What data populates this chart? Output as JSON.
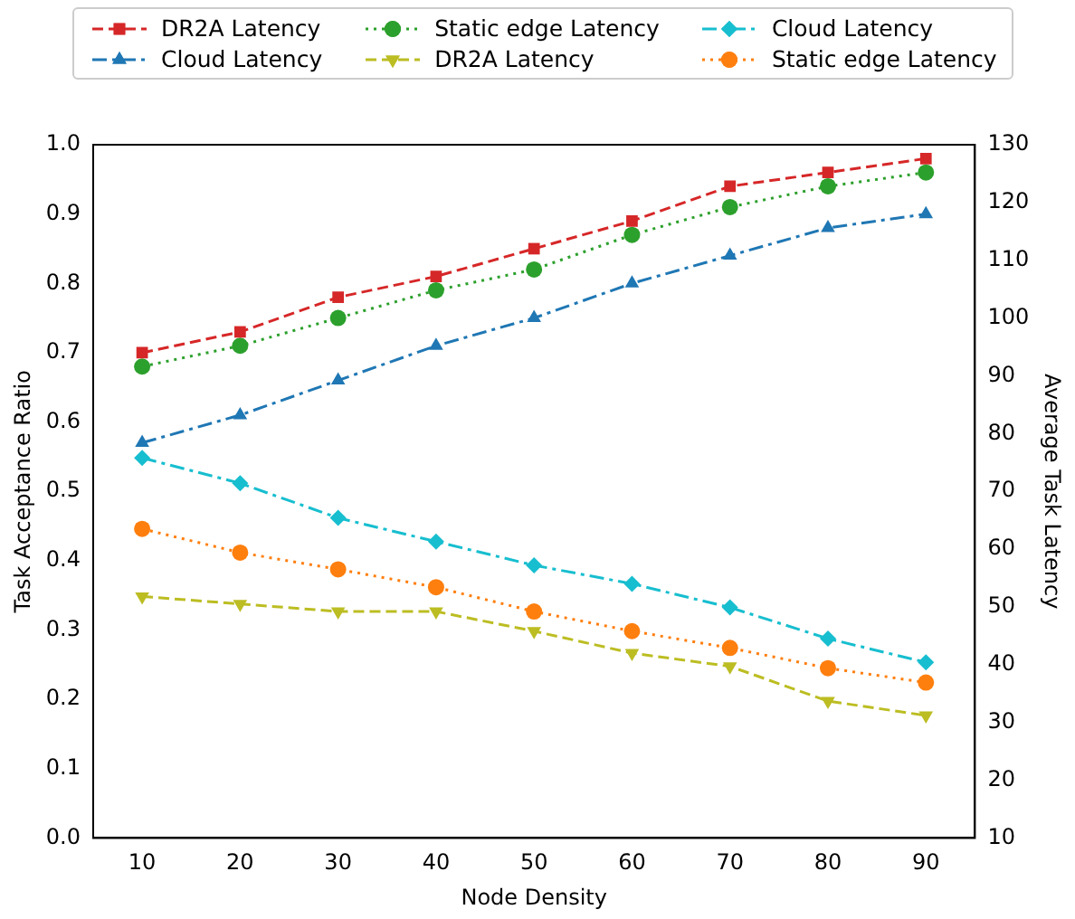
{
  "chart_data": {
    "type": "line",
    "xlabel": "Node Density",
    "ylabel": "Task Acceptance Ratio",
    "y2label": "Average Task Latency",
    "x": [
      10,
      20,
      30,
      40,
      50,
      60,
      70,
      80,
      90
    ],
    "xlim": [
      5,
      95
    ],
    "xticks": [
      10,
      20,
      30,
      40,
      50,
      60,
      70,
      80,
      90
    ],
    "ylim": [
      0,
      1
    ],
    "yticks": [
      {
        "value": 0,
        "label": "0.0"
      },
      {
        "value": 0.1,
        "label": "0.1"
      },
      {
        "value": 0.2,
        "label": "0.2"
      },
      {
        "value": 0.3,
        "label": "0.3"
      },
      {
        "value": 0.4,
        "label": "0.4"
      },
      {
        "value": 0.5,
        "label": "0.5"
      },
      {
        "value": 0.6,
        "label": "0.6"
      },
      {
        "value": 0.7,
        "label": "0.7"
      },
      {
        "value": 0.8,
        "label": "0.8"
      },
      {
        "value": 0.9,
        "label": "0.9"
      },
      {
        "value": 1,
        "label": "1.0"
      }
    ],
    "y2lim": [
      10,
      130
    ],
    "y2ticks": [
      10,
      20,
      30,
      40,
      50,
      60,
      70,
      80,
      90,
      100,
      110,
      120,
      130
    ],
    "legend": "top",
    "grid": false,
    "series": [
      {
        "name": "DR2A Latency",
        "color": "#d62728",
        "marker": "square",
        "line_style": "dashed",
        "values": [
          0.7,
          0.73,
          0.78,
          0.81,
          0.85,
          0.89,
          0.94,
          0.96,
          0.98
        ]
      },
      {
        "name": "Cloud Latency",
        "color": "#1f77b4",
        "marker": "triangle",
        "line_style": "dashdot",
        "values": [
          0.57,
          0.61,
          0.66,
          0.71,
          0.75,
          0.8,
          0.84,
          0.88,
          0.9
        ]
      },
      {
        "name": "Static edge Latency",
        "color": "#2ca02c",
        "marker": "circle",
        "line_style": "dotted",
        "values": [
          0.68,
          0.71,
          0.75,
          0.79,
          0.82,
          0.87,
          0.91,
          0.94,
          0.96
        ]
      },
      {
        "name": "DR2A Latency",
        "color": "#bcbd22",
        "marker": "triangle_down",
        "line_style": "dashed",
        "axis": "y2",
        "values": [
          51.8,
          50.5,
          49.2,
          49.2,
          45.8,
          42.0,
          39.7,
          33.7,
          31.2
        ]
      },
      {
        "name": "Cloud Latency",
        "color": "#17becf",
        "marker": "diamond",
        "line_style": "dashdot",
        "axis": "y2",
        "values": [
          75.8,
          71.4,
          65.4,
          61.3,
          57.2,
          54.0,
          49.9,
          44.5,
          40.4
        ]
      },
      {
        "name": "Static edge Latency",
        "color": "#ff7f0e",
        "marker": "circle",
        "line_style": "dotted",
        "axis": "y2",
        "values": [
          63.5,
          59.4,
          56.5,
          53.4,
          49.2,
          45.8,
          42.9,
          39.4,
          36.9
        ]
      }
    ]
  }
}
